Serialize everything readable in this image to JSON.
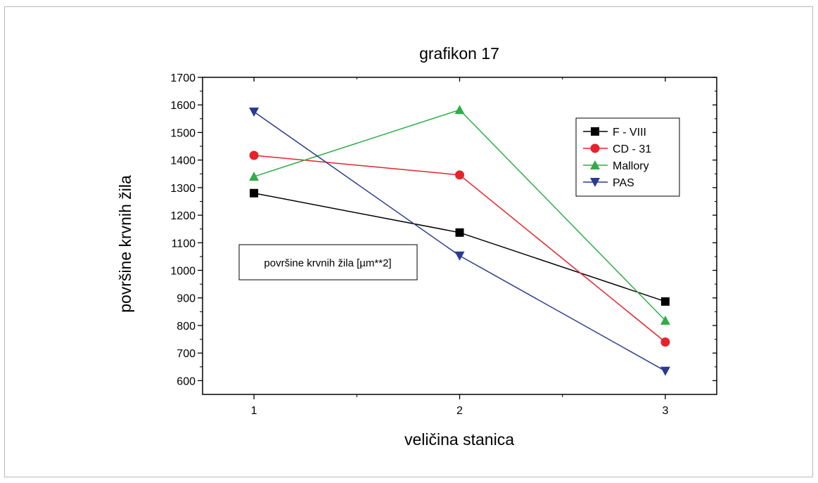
{
  "chart_data": {
    "type": "line",
    "title": "grafikon 17",
    "xlabel": "veličina stanica",
    "ylabel": "površine krvnih žila",
    "annotation": "površine krvnih žila [µm**2]",
    "x": [
      1,
      2,
      3
    ],
    "xticks": [
      "1",
      "2",
      "3"
    ],
    "xlim": [
      0.75,
      3.25
    ],
    "ylim": [
      550,
      1700
    ],
    "yticks": [
      "600",
      "700",
      "800",
      "900",
      "1000",
      "1100",
      "1200",
      "1300",
      "1400",
      "1500",
      "1600",
      "1700"
    ],
    "grid": false,
    "legend_position": "top-right",
    "series": [
      {
        "name": "F - VIII",
        "color": "#000000",
        "marker": "square",
        "values": [
          1280,
          1137,
          887
        ]
      },
      {
        "name": "CD - 31",
        "color": "#e8222c",
        "marker": "circle",
        "values": [
          1417,
          1346,
          740
        ]
      },
      {
        "name": "Mallory",
        "color": "#2fad48",
        "marker": "triangle-up",
        "values": [
          1340,
          1582,
          818
        ]
      },
      {
        "name": "PAS",
        "color": "#2a3b8f",
        "marker": "triangle-down",
        "values": [
          1575,
          1053,
          635
        ]
      }
    ]
  }
}
